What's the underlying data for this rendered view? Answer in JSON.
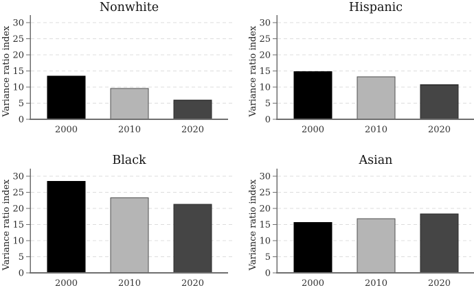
{
  "figure": {
    "ylabel": "Variance ratio index",
    "categories": [
      "2000",
      "2010",
      "2020"
    ],
    "colors": {
      "background": "#ffffff",
      "axis": "#6e6e6e",
      "grid": "#dcdcdc",
      "tick_text": "#2b2b2b",
      "title_text": "#141414",
      "bar_fills": [
        "#000000",
        "#b5b5b5",
        "#454545"
      ],
      "bar_strokes": [
        "#000000",
        "#4f4f4f",
        "#2b2b2b"
      ]
    }
  },
  "chart_data": [
    {
      "type": "bar",
      "title": "Nonwhite",
      "categories": [
        "2000",
        "2010",
        "2020"
      ],
      "values": [
        13.4,
        9.6,
        5.9
      ],
      "xlabel": "",
      "ylabel": "Variance ratio index",
      "ylim": [
        0,
        32
      ],
      "yticks": [
        0,
        5,
        10,
        15,
        20,
        25,
        30
      ],
      "grid": true,
      "legend": false
    },
    {
      "type": "bar",
      "title": "Hispanic",
      "categories": [
        "2000",
        "2010",
        "2020"
      ],
      "values": [
        14.8,
        13.2,
        10.7
      ],
      "xlabel": "",
      "ylabel": "Variance ratio index",
      "ylim": [
        0,
        32
      ],
      "yticks": [
        0,
        5,
        10,
        15,
        20,
        25,
        30
      ],
      "grid": true,
      "legend": false
    },
    {
      "type": "bar",
      "title": "Black",
      "categories": [
        "2000",
        "2010",
        "2020"
      ],
      "values": [
        28.4,
        23.3,
        21.3
      ],
      "xlabel": "",
      "ylabel": "Variance ratio index",
      "ylim": [
        0,
        32
      ],
      "yticks": [
        0,
        5,
        10,
        15,
        20,
        25,
        30
      ],
      "grid": true,
      "legend": false
    },
    {
      "type": "bar",
      "title": "Asian",
      "categories": [
        "2000",
        "2010",
        "2020"
      ],
      "values": [
        15.6,
        16.8,
        18.3
      ],
      "xlabel": "",
      "ylabel": "Variance ratio index",
      "ylim": [
        0,
        32
      ],
      "yticks": [
        0,
        5,
        10,
        15,
        20,
        25,
        30
      ],
      "grid": true,
      "legend": false
    }
  ]
}
